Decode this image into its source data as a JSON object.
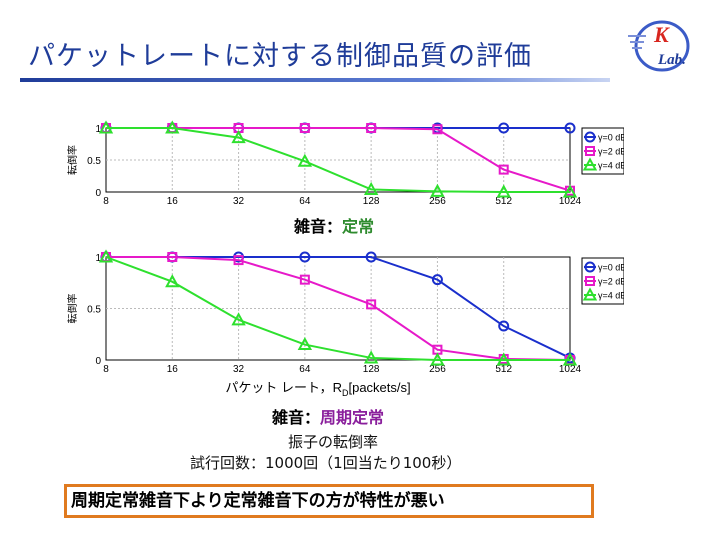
{
  "slide": {
    "title": "パケットレートに対する制御品質の評価",
    "logo_letter_top": "K",
    "logo_letter_bottom": "Lab."
  },
  "captions": {
    "top_noise_prefix": "雑音：",
    "top_noise_value": "定常",
    "bottom_noise_prefix": "雑音：",
    "bottom_noise_value": "周期定常",
    "metric_line": "振子の転倒率",
    "trials_line": "試行回数：1000回（1回当たり100秒）"
  },
  "conclusion": "周期定常雑音下より定常雑音下の方が特性が悪い",
  "colors": {
    "title": "#1f3c99",
    "series_0": "#1a2fcc",
    "series_2": "#e619c9",
    "series_4": "#2ee02e",
    "conclusion_border": "#e07a1f"
  },
  "chart_data": [
    {
      "type": "line",
      "x": [
        8,
        16,
        32,
        64,
        128,
        256,
        512,
        1024
      ],
      "x_scale": "log2",
      "x_ticks": [
        "8",
        "16",
        "32",
        "64",
        "128",
        "256",
        "512",
        "1024"
      ],
      "ylabel": "転倒率",
      "xlabel": "",
      "ylim": [
        0,
        1
      ],
      "y_ticks": [
        "0",
        "0.5",
        "1"
      ],
      "grid": true,
      "legend": "right",
      "series": [
        {
          "name": "γ=0 dB",
          "marker": "circle",
          "values": [
            1,
            1,
            1,
            1,
            1,
            1,
            1,
            1
          ]
        },
        {
          "name": "γ=2 dB",
          "marker": "square",
          "values": [
            1,
            1,
            1,
            1,
            1,
            0.98,
            0.35,
            0.02
          ]
        },
        {
          "name": "γ=4 dB",
          "marker": "triangle",
          "values": [
            1,
            1,
            0.85,
            0.48,
            0.04,
            0.01,
            0,
            0
          ]
        }
      ]
    },
    {
      "type": "line",
      "x": [
        8,
        16,
        32,
        64,
        128,
        256,
        512,
        1024
      ],
      "x_scale": "log2",
      "x_ticks": [
        "8",
        "16",
        "32",
        "64",
        "128",
        "256",
        "512",
        "1024"
      ],
      "ylabel": "転倒率",
      "xlabel": "パケット レート，R",
      "xlabel_sub": "D",
      "xlabel_unit": "[packets/s]",
      "ylim": [
        0,
        1
      ],
      "y_ticks": [
        "0",
        "0.5",
        "1"
      ],
      "grid": true,
      "legend": "right",
      "series": [
        {
          "name": "γ=0 dB",
          "marker": "circle",
          "values": [
            1,
            1,
            1,
            1,
            1,
            0.78,
            0.33,
            0.02
          ]
        },
        {
          "name": "γ=2 dB",
          "marker": "square",
          "values": [
            1,
            1,
            0.97,
            0.78,
            0.54,
            0.1,
            0.01,
            0
          ]
        },
        {
          "name": "γ=4 dB",
          "marker": "triangle",
          "values": [
            1,
            0.76,
            0.39,
            0.15,
            0.02,
            0,
            0,
            0
          ]
        }
      ]
    }
  ]
}
